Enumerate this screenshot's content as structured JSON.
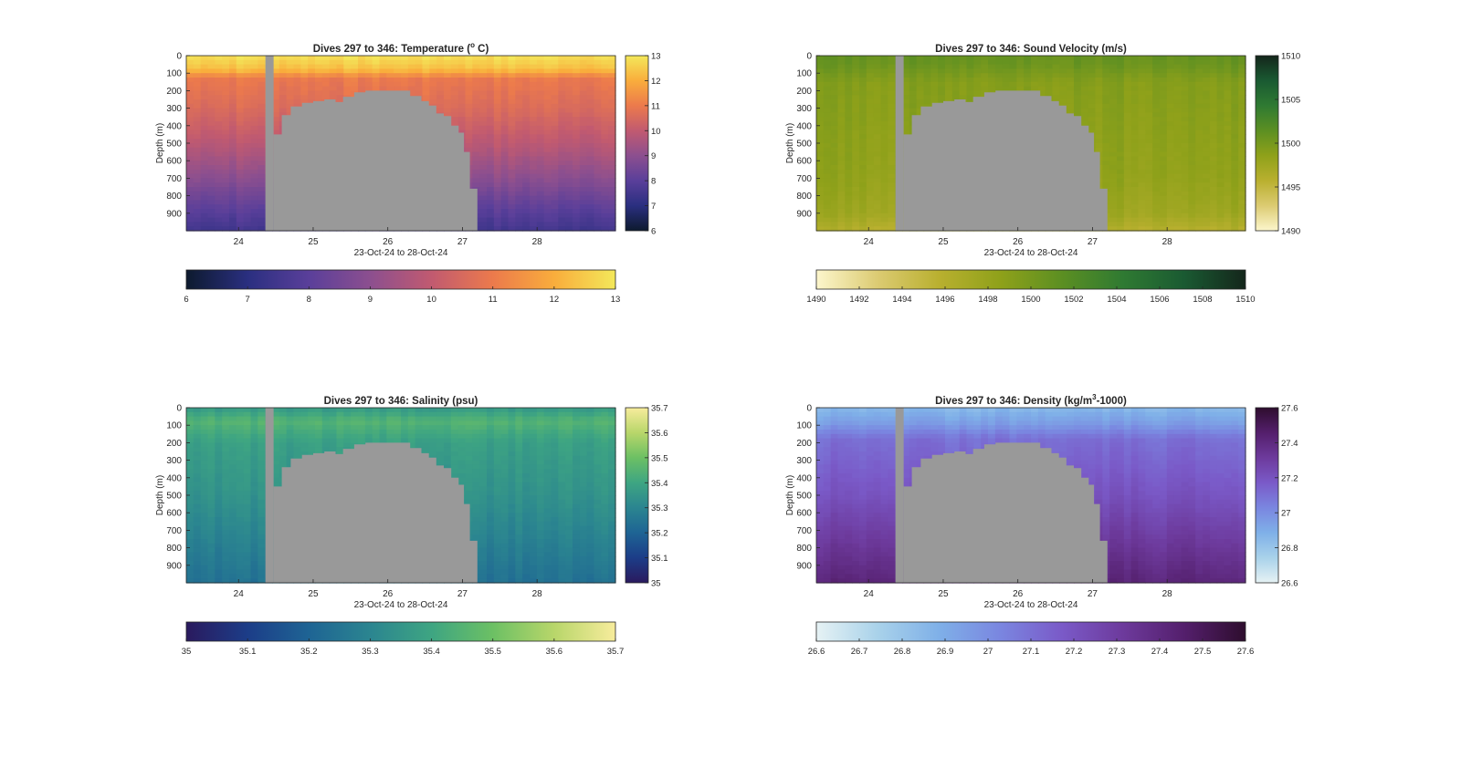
{
  "figure": {
    "background": "#ffffff",
    "seafloor_color": "#999999"
  },
  "chart_data": [
    {
      "type": "heatmap",
      "variable": "temperature",
      "title": "Dives 297 to 346: Temperature (",
      "title_sup": "o",
      "title_end": " C)",
      "xlabel": "23-Oct-24 to 28-Oct-24",
      "ylabel": "Depth (m)",
      "xlim": [
        23.3,
        29.05
      ],
      "ylim": [
        0,
        1000
      ],
      "x_ticks": [
        24,
        25,
        26,
        27,
        28
      ],
      "y_ticks": [
        0,
        100,
        200,
        300,
        400,
        500,
        600,
        700,
        800,
        900
      ],
      "colorbar_range": [
        6,
        13
      ],
      "colorbar_ticks": [
        "6",
        "7",
        "8",
        "9",
        "10",
        "11",
        "12",
        "13"
      ],
      "horizontal_colorbar_ticks": [
        "6",
        "7",
        "8",
        "9",
        "10",
        "11",
        "12",
        "13"
      ],
      "colormap": [
        "#0d1a2e",
        "#2a2f80",
        "#5a3f9a",
        "#8c4f8f",
        "#c15a70",
        "#ec7a4c",
        "#f9ad3c",
        "#f3e85a"
      ],
      "profile_values": [
        {
          "depth": 0,
          "value": 12.9
        },
        {
          "depth": 80,
          "value": 12.3
        },
        {
          "depth": 130,
          "value": 11.0
        },
        {
          "depth": 300,
          "value": 10.6
        },
        {
          "depth": 500,
          "value": 9.9
        },
        {
          "depth": 700,
          "value": 9.0
        },
        {
          "depth": 850,
          "value": 8.2
        },
        {
          "depth": 1000,
          "value": 7.5
        }
      ],
      "mode": "sequential"
    },
    {
      "type": "heatmap",
      "variable": "sound_velocity",
      "title": "Dives 297 to 346: Sound Velocity (m/s)",
      "xlabel": "23-Oct-24 to 28-Oct-24",
      "ylabel": "Depth (m)",
      "xlim": [
        23.3,
        29.05
      ],
      "ylim": [
        0,
        1000
      ],
      "x_ticks": [
        24,
        25,
        26,
        27,
        28
      ],
      "y_ticks": [
        0,
        100,
        200,
        300,
        400,
        500,
        600,
        700,
        800,
        900
      ],
      "colorbar_range": [
        1490,
        1510
      ],
      "colorbar_ticks": [
        "1490",
        "1495",
        "1500",
        "1505",
        "1510"
      ],
      "horizontal_colorbar_ticks": [
        "1490",
        "1492",
        "1494",
        "1496",
        "1498",
        "1500",
        "1502",
        "1504",
        "1506",
        "1508",
        "1510"
      ],
      "colormap": [
        "#fcf6cc",
        "#dccb72",
        "#b9b02f",
        "#8fa11a",
        "#5c8f22",
        "#2f7a32",
        "#1a5a32",
        "#14261b"
      ],
      "profile_values": [
        {
          "depth": 0,
          "value": 1501.0
        },
        {
          "depth": 60,
          "value": 1500.5
        },
        {
          "depth": 150,
          "value": 1499.2
        },
        {
          "depth": 400,
          "value": 1498.8
        },
        {
          "depth": 700,
          "value": 1498.4
        },
        {
          "depth": 900,
          "value": 1497.6
        },
        {
          "depth": 1000,
          "value": 1496.0
        }
      ],
      "mode": "sequential"
    },
    {
      "type": "heatmap",
      "variable": "salinity",
      "title": "Dives 297 to 346: Salinity (psu)",
      "xlabel": "23-Oct-24 to 28-Oct-24",
      "ylabel": "Depth (m)",
      "xlim": [
        23.3,
        29.05
      ],
      "ylim": [
        0,
        1000
      ],
      "x_ticks": [
        24,
        25,
        26,
        27,
        28
      ],
      "y_ticks": [
        0,
        100,
        200,
        300,
        400,
        500,
        600,
        700,
        800,
        900
      ],
      "colorbar_range": [
        35,
        35.7
      ],
      "colorbar_ticks": [
        "35",
        "35.1",
        "35.2",
        "35.3",
        "35.4",
        "35.5",
        "35.6",
        "35.7"
      ],
      "horizontal_colorbar_ticks": [
        "35",
        "35.1",
        "35.2",
        "35.3",
        "35.4",
        "35.5",
        "35.6",
        "35.7"
      ],
      "colormap": [
        "#2a1a5e",
        "#1c3d88",
        "#1e6494",
        "#2b8590",
        "#3ea582",
        "#6cc064",
        "#b8d66a",
        "#f7ec9c"
      ],
      "profile_values": [
        {
          "depth": 0,
          "value": 35.36
        },
        {
          "depth": 80,
          "value": 35.45
        },
        {
          "depth": 200,
          "value": 35.38
        },
        {
          "depth": 500,
          "value": 35.34
        },
        {
          "depth": 800,
          "value": 35.28
        },
        {
          "depth": 1000,
          "value": 35.24
        }
      ],
      "mode": "sequential"
    },
    {
      "type": "heatmap",
      "variable": "density",
      "title": "Dives 297 to 346: Density (kg/m",
      "title_sup": "3",
      "title_end": "-1000)",
      "xlabel": "23-Oct-24 to 28-Oct-24",
      "ylabel": "Depth (m)",
      "xlim": [
        23.3,
        29.05
      ],
      "ylim": [
        0,
        1000
      ],
      "x_ticks": [
        24,
        25,
        26,
        27,
        28
      ],
      "y_ticks": [
        0,
        100,
        200,
        300,
        400,
        500,
        600,
        700,
        800,
        900
      ],
      "colorbar_range": [
        26.6,
        27.6
      ],
      "colorbar_ticks": [
        "26.6",
        "26.8",
        "27",
        "27.2",
        "27.4",
        "27.6"
      ],
      "horizontal_colorbar_ticks": [
        "26.6",
        "26.7",
        "26.8",
        "26.9",
        "27",
        "27.1",
        "27.2",
        "27.3",
        "27.4",
        "27.5",
        "27.6"
      ],
      "colormap": [
        "#e6f2f4",
        "#a9d2ea",
        "#7fb0e8",
        "#7a86e0",
        "#7a5ac8",
        "#6d3a9c",
        "#541f6c",
        "#2e0d2e"
      ],
      "profile_values": [
        {
          "depth": 0,
          "value": 26.85
        },
        {
          "depth": 90,
          "value": 26.95
        },
        {
          "depth": 180,
          "value": 27.1
        },
        {
          "depth": 500,
          "value": 27.2
        },
        {
          "depth": 800,
          "value": 27.33
        },
        {
          "depth": 1000,
          "value": 27.42
        }
      ],
      "mode": "sequential"
    }
  ],
  "seafloor_profile": {
    "description_units": "x in days (Oct-2024), depth in m",
    "gap_column": {
      "x0": 24.36,
      "x1": 24.47
    },
    "points": [
      [
        24.47,
        1000
      ],
      [
        24.47,
        450
      ],
      [
        24.58,
        450
      ],
      [
        24.58,
        340
      ],
      [
        24.7,
        340
      ],
      [
        24.7,
        290
      ],
      [
        24.85,
        290
      ],
      [
        24.85,
        270
      ],
      [
        25.0,
        270
      ],
      [
        25.0,
        260
      ],
      [
        25.15,
        260
      ],
      [
        25.15,
        250
      ],
      [
        25.3,
        250
      ],
      [
        25.3,
        265
      ],
      [
        25.4,
        265
      ],
      [
        25.4,
        235
      ],
      [
        25.55,
        235
      ],
      [
        25.55,
        210
      ],
      [
        25.7,
        210
      ],
      [
        25.7,
        200
      ],
      [
        26.3,
        200
      ],
      [
        26.3,
        230
      ],
      [
        26.45,
        230
      ],
      [
        26.45,
        260
      ],
      [
        26.55,
        260
      ],
      [
        26.55,
        285
      ],
      [
        26.65,
        285
      ],
      [
        26.65,
        330
      ],
      [
        26.75,
        330
      ],
      [
        26.75,
        345
      ],
      [
        26.85,
        345
      ],
      [
        26.85,
        400
      ],
      [
        26.95,
        400
      ],
      [
        26.95,
        440
      ],
      [
        27.02,
        440
      ],
      [
        27.02,
        550
      ],
      [
        27.1,
        550
      ],
      [
        27.1,
        760
      ],
      [
        27.2,
        760
      ],
      [
        27.2,
        1000
      ]
    ]
  }
}
